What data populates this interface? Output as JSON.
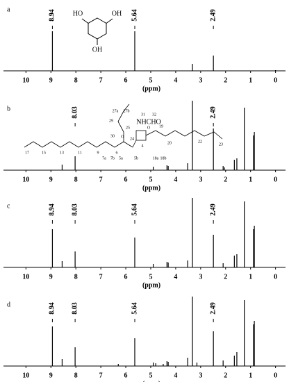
{
  "chart_data": [
    {
      "type": "spectrum",
      "label": "a",
      "xlabel": "(ppm)",
      "xlim": [
        10.9,
        -0.4
      ],
      "xticks": [
        10,
        9,
        8,
        7,
        6,
        5,
        4,
        3,
        2,
        1,
        0
      ],
      "ylim": [
        0,
        100
      ],
      "color": "#000000",
      "x": [
        8.94,
        5.64,
        3.33,
        2.49,
        0.0
      ],
      "values": [
        57,
        57,
        10,
        22,
        1
      ],
      "annotations": [
        8.94,
        5.64,
        2.49
      ],
      "structure_labels": [
        "HO",
        "OH",
        "OH"
      ]
    },
    {
      "type": "spectrum",
      "label": "b",
      "xlabel": "(ppm)",
      "xlim": [
        10.9,
        -0.4
      ],
      "xticks": [
        10,
        9,
        8,
        7,
        6,
        5,
        4,
        3,
        2,
        1,
        0
      ],
      "ylim": [
        0,
        100
      ],
      "color": "#000000",
      "x": [
        8.55,
        8.03,
        4.9,
        4.35,
        4.3,
        3.52,
        3.33,
        2.49,
        2.1,
        2.05,
        1.65,
        1.55,
        1.25,
        0.88,
        0.85
      ],
      "values": [
        8,
        20,
        5,
        7,
        6,
        10,
        100,
        60,
        6,
        4,
        15,
        17,
        90,
        50,
        55
      ],
      "annotations": [
        8.03,
        2.49
      ],
      "structure_labels": [
        "27a",
        "27b",
        "31",
        "32",
        "NHCHO",
        "29",
        "30",
        "25",
        "24",
        "O",
        "O",
        "17",
        "15",
        "13",
        "11",
        "9",
        "6",
        "4",
        "19",
        "20",
        "22",
        "23",
        "7a",
        "7b",
        "5a",
        "5b",
        "18a",
        "18b"
      ]
    },
    {
      "type": "spectrum",
      "label": "c",
      "xlabel": "(ppm)",
      "xlim": [
        10.9,
        -0.4
      ],
      "xticks": [
        10,
        9,
        8,
        7,
        6,
        5,
        4,
        3,
        2,
        1,
        0
      ],
      "ylim": [
        0,
        100
      ],
      "color": "#000000",
      "x": [
        8.94,
        8.55,
        8.03,
        5.64,
        4.9,
        4.35,
        4.3,
        3.52,
        3.33,
        2.49,
        2.1,
        1.65,
        1.55,
        1.25,
        0.88,
        0.85
      ],
      "values": [
        55,
        9,
        23,
        43,
        5,
        8,
        7,
        10,
        100,
        47,
        6,
        17,
        19,
        95,
        55,
        60
      ],
      "annotations": [
        8.94,
        8.03,
        5.64,
        2.49
      ]
    },
    {
      "type": "spectrum",
      "label": "d",
      "xlabel": "(ppm)",
      "xlim": [
        10.9,
        -0.4
      ],
      "xticks": [
        10,
        9,
        8,
        7,
        6,
        5,
        4,
        3,
        2,
        1,
        0
      ],
      "ylim": [
        0,
        100
      ],
      "color": "#000000",
      "x": [
        8.94,
        8.55,
        8.03,
        6.3,
        5.64,
        4.9,
        4.8,
        4.5,
        4.35,
        4.3,
        3.52,
        3.33,
        3.15,
        2.49,
        2.1,
        1.65,
        1.55,
        1.25,
        0.88,
        0.85
      ],
      "values": [
        57,
        10,
        27,
        3,
        40,
        5,
        4,
        3,
        7,
        6,
        12,
        100,
        5,
        50,
        8,
        15,
        20,
        95,
        60,
        65
      ],
      "annotations": [
        8.94,
        8.03,
        5.64,
        2.49
      ]
    }
  ]
}
